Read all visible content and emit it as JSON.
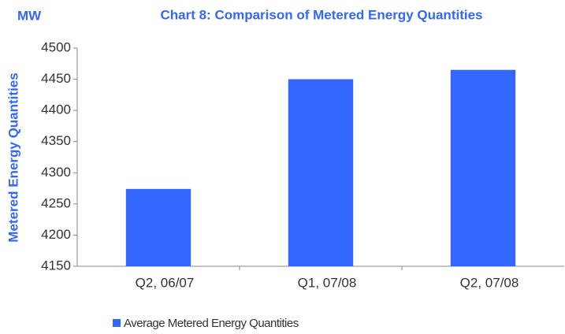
{
  "chart_data": {
    "type": "bar",
    "title": "Chart 8: Comparison of Metered Energy Quantities",
    "unit": "MW",
    "ylabel": "Metered Energy Quantities",
    "categories": [
      "Q2, 06/07",
      "Q1, 07/08",
      "Q2, 07/08"
    ],
    "series": [
      {
        "name": "Average Metered Energy Quantities",
        "color": "#3366ff",
        "values": [
          4274,
          4450,
          4465
        ]
      }
    ],
    "ylim": [
      4150,
      4500
    ],
    "yticks": [
      4150,
      4200,
      4250,
      4300,
      4350,
      4400,
      4450,
      4500
    ],
    "grid": false,
    "legend": "bottom-left"
  }
}
